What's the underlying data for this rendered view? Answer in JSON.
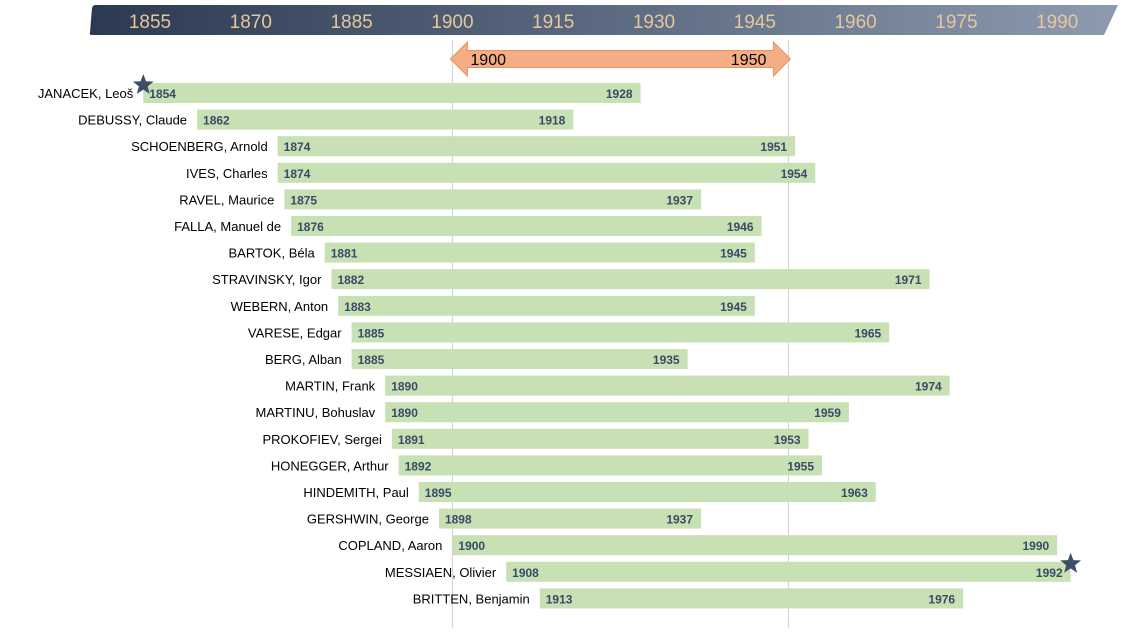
{
  "chart_data": {
    "type": "bar",
    "orientation": "horizontal",
    "subtype": "timeline",
    "x_ticks": [
      1855,
      1870,
      1885,
      1900,
      1915,
      1930,
      1945,
      1960,
      1975,
      1990
    ],
    "xlim": [
      1850,
      1993
    ],
    "highlight_range": {
      "start": 1900,
      "end": 1950,
      "start_label": "1900",
      "end_label": "1950"
    },
    "reference_lines": [
      1900,
      1950
    ],
    "star_markers": [
      "JANACEK, Leoš",
      "MESSIAEN, Olivier"
    ],
    "colors": {
      "header_dark": "#2b3a52",
      "header_light": "#8d9ab0",
      "tick_text": "#e6c79a",
      "bar": "#c7e0b4",
      "bar_label": "#3a4a66",
      "arrow": "#f4ad85",
      "star": "#3d4e6b"
    },
    "items": [
      {
        "name": "JANACEK, Leoš",
        "start": 1854,
        "end": 1928
      },
      {
        "name": "DEBUSSY, Claude",
        "start": 1862,
        "end": 1918
      },
      {
        "name": "SCHOENBERG, Arnold",
        "start": 1874,
        "end": 1951
      },
      {
        "name": "IVES, Charles",
        "start": 1874,
        "end": 1954
      },
      {
        "name": "RAVEL, Maurice",
        "start": 1875,
        "end": 1937
      },
      {
        "name": "FALLA, Manuel de",
        "start": 1876,
        "end": 1946
      },
      {
        "name": "BARTOK, Béla",
        "start": 1881,
        "end": 1945
      },
      {
        "name": "STRAVINSKY, Igor",
        "start": 1882,
        "end": 1971
      },
      {
        "name": "WEBERN, Anton",
        "start": 1883,
        "end": 1945
      },
      {
        "name": "VARESE, Edgar",
        "start": 1885,
        "end": 1965
      },
      {
        "name": "BERG, Alban",
        "start": 1885,
        "end": 1935
      },
      {
        "name": "MARTIN, Frank",
        "start": 1890,
        "end": 1974
      },
      {
        "name": "MARTINU, Bohuslav",
        "start": 1890,
        "end": 1959
      },
      {
        "name": "PROKOFIEV, Sergei",
        "start": 1891,
        "end": 1953
      },
      {
        "name": "HONEGGER, Arthur",
        "start": 1892,
        "end": 1955
      },
      {
        "name": "HINDEMITH, Paul",
        "start": 1895,
        "end": 1963
      },
      {
        "name": "GERSHWIN, George",
        "start": 1898,
        "end": 1937
      },
      {
        "name": "COPLAND, Aaron",
        "start": 1900,
        "end": 1990
      },
      {
        "name": "MESSIAEN, Olivier",
        "start": 1908,
        "end": 1992
      },
      {
        "name": "BRITTEN, Benjamin",
        "start": 1913,
        "end": 1976
      }
    ]
  }
}
